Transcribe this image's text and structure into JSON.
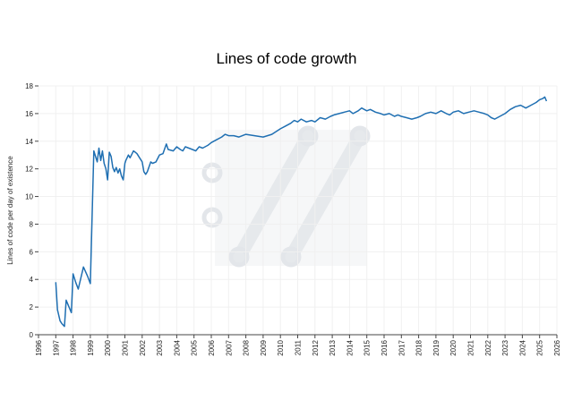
{
  "chart_data": {
    "type": "line",
    "title": "Lines of code growth",
    "xlabel": "",
    "ylabel": "Lines of code per day of existence",
    "xlim": [
      1996,
      2026
    ],
    "ylim": [
      0,
      18
    ],
    "x_ticks": [
      "1996",
      "1997",
      "1998",
      "1999",
      "2000",
      "2001",
      "2002",
      "2003",
      "2004",
      "2005",
      "2006",
      "2007",
      "2008",
      "2009",
      "2010",
      "2011",
      "2012",
      "2013",
      "2014",
      "2015",
      "2016",
      "2017",
      "2018",
      "2019",
      "2020",
      "2021",
      "2022",
      "2023",
      "2024",
      "2025",
      "2026"
    ],
    "y_ticks": [
      "0",
      "2",
      "4",
      "6",
      "8",
      "10",
      "12",
      "14",
      "16",
      "18"
    ],
    "grid": true,
    "series_color": "#1f6fb2",
    "series": [
      {
        "x": [
          1997.0,
          1997.1,
          1997.25,
          1997.35,
          1997.5,
          1997.6,
          1997.9,
          1998.0,
          1998.15,
          1998.3,
          1998.6,
          1998.85,
          1999.0,
          1999.2,
          1999.4,
          1999.5,
          1999.6,
          1999.7,
          1999.8,
          1999.9,
          2000.0,
          2000.1,
          2000.2,
          2000.3,
          2000.4,
          2000.5,
          2000.6,
          2000.7,
          2000.8,
          2000.9,
          2001.0,
          2001.05,
          2001.2,
          2001.3,
          2001.5,
          2001.6,
          2001.7,
          2001.85,
          2002.0,
          2002.1,
          2002.2,
          2002.3,
          2002.5,
          2002.6,
          2002.8,
          2003.0,
          2003.2,
          2003.4,
          2003.5,
          2003.8,
          2004.0,
          2004.2,
          2004.35,
          2004.5,
          2004.7,
          2004.9,
          2005.1,
          2005.3,
          2005.5,
          2005.8,
          2006.0,
          2006.3,
          2006.6,
          2006.8,
          2007.0,
          2007.3,
          2007.6,
          2008.0,
          2008.5,
          2009.0,
          2009.5,
          2010.0,
          2010.3,
          2010.6,
          2010.8,
          2011.0,
          2011.2,
          2011.5,
          2011.8,
          2012.0,
          2012.3,
          2012.6,
          2012.9,
          2013.1,
          2013.4,
          2013.7,
          2014.0,
          2014.2,
          2014.5,
          2014.7,
          2015.0,
          2015.2,
          2015.5,
          2015.8,
          2016.0,
          2016.3,
          2016.6,
          2016.8,
          2017.0,
          2017.3,
          2017.6,
          2017.9,
          2018.1,
          2018.4,
          2018.7,
          2019.0,
          2019.3,
          2019.6,
          2019.8,
          2020.0,
          2020.3,
          2020.6,
          2020.9,
          2021.2,
          2021.5,
          2021.8,
          2022.0,
          2022.2,
          2022.4,
          2022.7,
          2023.0,
          2023.3,
          2023.6,
          2023.9,
          2024.2,
          2024.5,
          2024.8,
          2025.0,
          2025.2,
          2025.3,
          2025.4
        ],
        "values": [
          3.8,
          1.8,
          1.0,
          0.8,
          0.6,
          2.5,
          1.6,
          4.4,
          3.8,
          3.3,
          4.9,
          4.2,
          3.7,
          13.3,
          12.5,
          13.5,
          12.6,
          13.3,
          12.4,
          12.0,
          11.2,
          13.2,
          12.9,
          12.1,
          11.8,
          12.1,
          11.7,
          12.0,
          11.5,
          11.2,
          12.4,
          12.6,
          13.0,
          12.8,
          13.3,
          13.2,
          13.1,
          12.8,
          12.5,
          11.8,
          11.6,
          11.8,
          12.5,
          12.4,
          12.5,
          13.0,
          13.1,
          13.8,
          13.4,
          13.3,
          13.6,
          13.4,
          13.3,
          13.6,
          13.5,
          13.4,
          13.3,
          13.6,
          13.5,
          13.7,
          13.9,
          14.1,
          14.3,
          14.5,
          14.4,
          14.4,
          14.3,
          14.5,
          14.4,
          14.3,
          14.5,
          14.9,
          15.1,
          15.3,
          15.5,
          15.4,
          15.6,
          15.4,
          15.5,
          15.4,
          15.7,
          15.6,
          15.8,
          15.9,
          16.0,
          16.1,
          16.2,
          16.0,
          16.2,
          16.4,
          16.2,
          16.3,
          16.1,
          16.0,
          15.9,
          16.0,
          15.8,
          15.9,
          15.8,
          15.7,
          15.6,
          15.7,
          15.8,
          16.0,
          16.1,
          16.0,
          16.2,
          16.0,
          15.9,
          16.1,
          16.2,
          16.0,
          16.1,
          16.2,
          16.1,
          16.0,
          15.9,
          15.7,
          15.6,
          15.8,
          16.0,
          16.3,
          16.5,
          16.6,
          16.4,
          16.6,
          16.8,
          17.0,
          17.1,
          17.2,
          16.9
        ]
      }
    ]
  }
}
